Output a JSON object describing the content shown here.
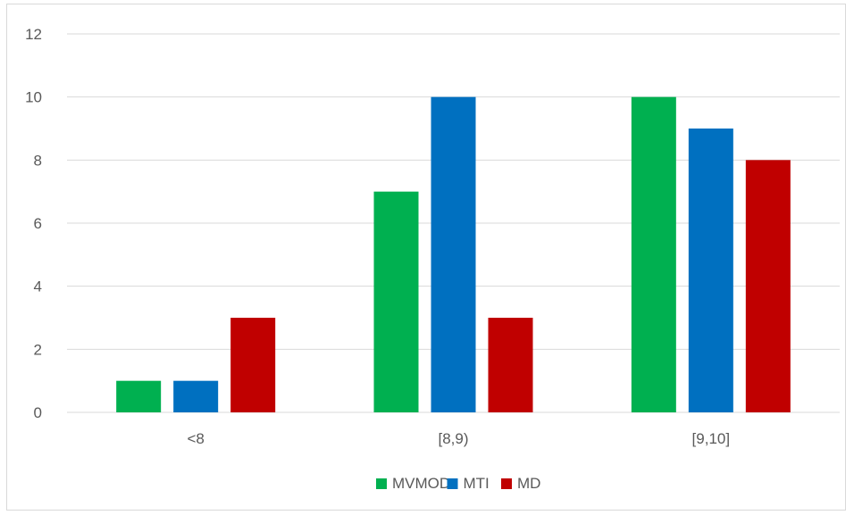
{
  "chart_data": {
    "type": "bar",
    "title": "",
    "xlabel": "",
    "ylabel": "",
    "categories": [
      "<8",
      "[8,9)",
      "[9,10]"
    ],
    "series": [
      {
        "name": "MVMOD",
        "color": "#00b050",
        "values": [
          1,
          7,
          10
        ]
      },
      {
        "name": "MTI",
        "color": "#0070c0",
        "values": [
          1,
          10,
          9
        ]
      },
      {
        "name": "MD",
        "color": "#c00000",
        "values": [
          3,
          3,
          8
        ]
      }
    ],
    "ylim": [
      0,
      12
    ],
    "yticks": [
      0,
      2,
      4,
      6,
      8,
      10,
      12
    ],
    "grid": true,
    "legend_position": "bottom"
  }
}
